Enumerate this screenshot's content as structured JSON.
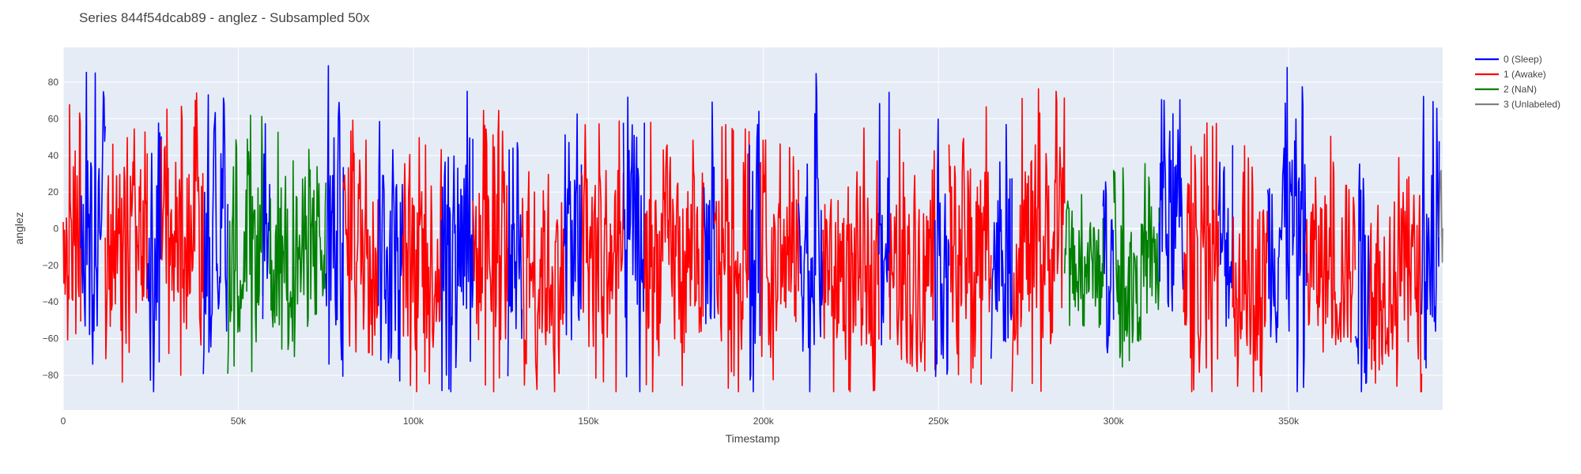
{
  "chart_data": {
    "type": "line",
    "title": "Series 844f54dcab89 - anglez - Subsampled 50x",
    "xlabel": "Timestamp",
    "ylabel": "anglez",
    "xlim": [
      0,
      394000
    ],
    "ylim": [
      -99,
      99
    ],
    "x_ticks": [
      {
        "value": 0,
        "label": "0"
      },
      {
        "value": 50000,
        "label": "50k"
      },
      {
        "value": 100000,
        "label": "100k"
      },
      {
        "value": 150000,
        "label": "150k"
      },
      {
        "value": 200000,
        "label": "200k"
      },
      {
        "value": 250000,
        "label": "250k"
      },
      {
        "value": 300000,
        "label": "300k"
      },
      {
        "value": 350000,
        "label": "350k"
      }
    ],
    "y_ticks": [
      {
        "value": 80,
        "label": "80"
      },
      {
        "value": 60,
        "label": "60"
      },
      {
        "value": 40,
        "label": "40"
      },
      {
        "value": 20,
        "label": "20"
      },
      {
        "value": 0,
        "label": "0"
      },
      {
        "value": -20,
        "label": "−20"
      },
      {
        "value": -40,
        "label": "−40"
      },
      {
        "value": -60,
        "label": "−60"
      },
      {
        "value": -80,
        "label": "−80"
      }
    ],
    "grid": true,
    "legend_position": "top-right, outside plot",
    "series": [
      {
        "name": "0 (Sleep)",
        "color": "#0000ff"
      },
      {
        "name": "1 (Awake)",
        "color": "#ff0000"
      },
      {
        "name": "2 (NaN)",
        "color": "#008000"
      },
      {
        "name": "3 (Unlabeled)",
        "color": "#808080"
      }
    ],
    "segments": [
      {
        "series": 1,
        "x_start": 0,
        "x_end": 5000,
        "center": 0,
        "amplitude": 60
      },
      {
        "series": 0,
        "x_start": 5000,
        "x_end": 12000,
        "center": 5,
        "amplitude": 70
      },
      {
        "series": 1,
        "x_start": 12000,
        "x_end": 24000,
        "center": -15,
        "amplitude": 60
      },
      {
        "series": 0,
        "x_start": 24000,
        "x_end": 28000,
        "center": -10,
        "amplitude": 65
      },
      {
        "series": 1,
        "x_start": 28000,
        "x_end": 40000,
        "center": -5,
        "amplitude": 65
      },
      {
        "series": 0,
        "x_start": 40000,
        "x_end": 47000,
        "center": 0,
        "amplitude": 70
      },
      {
        "series": 2,
        "x_start": 47000,
        "x_end": 57000,
        "center": -10,
        "amplitude": 60
      },
      {
        "series": 0,
        "x_start": 57000,
        "x_end": 59000,
        "center": 0,
        "amplitude": 55
      },
      {
        "series": 2,
        "x_start": 59000,
        "x_end": 75000,
        "center": -15,
        "amplitude": 55
      },
      {
        "series": 0,
        "x_start": 75000,
        "x_end": 80000,
        "center": 0,
        "amplitude": 75
      },
      {
        "series": 1,
        "x_start": 80000,
        "x_end": 90000,
        "center": -10,
        "amplitude": 65
      },
      {
        "series": 0,
        "x_start": 90000,
        "x_end": 97000,
        "center": -5,
        "amplitude": 65
      },
      {
        "series": 1,
        "x_start": 97000,
        "x_end": 108000,
        "center": -15,
        "amplitude": 65
      },
      {
        "series": 0,
        "x_start": 108000,
        "x_end": 117000,
        "center": 0,
        "amplitude": 75
      },
      {
        "series": 1,
        "x_start": 117000,
        "x_end": 127000,
        "center": -15,
        "amplitude": 65
      },
      {
        "series": 0,
        "x_start": 127000,
        "x_end": 131000,
        "center": 0,
        "amplitude": 75
      },
      {
        "series": 1,
        "x_start": 131000,
        "x_end": 143000,
        "center": -20,
        "amplitude": 65
      },
      {
        "series": 0,
        "x_start": 143000,
        "x_end": 148000,
        "center": -10,
        "amplitude": 70
      },
      {
        "series": 1,
        "x_start": 148000,
        "x_end": 160000,
        "center": -15,
        "amplitude": 65
      },
      {
        "series": 0,
        "x_start": 160000,
        "x_end": 166000,
        "center": -5,
        "amplitude": 70
      },
      {
        "series": 1,
        "x_start": 166000,
        "x_end": 183000,
        "center": -15,
        "amplitude": 65
      },
      {
        "series": 0,
        "x_start": 183000,
        "x_end": 186000,
        "center": -10,
        "amplitude": 65
      },
      {
        "series": 1,
        "x_start": 186000,
        "x_end": 196000,
        "center": -15,
        "amplitude": 60
      },
      {
        "series": 0,
        "x_start": 196000,
        "x_end": 199000,
        "center": -10,
        "amplitude": 70
      },
      {
        "series": 1,
        "x_start": 199000,
        "x_end": 210000,
        "center": -20,
        "amplitude": 60
      },
      {
        "series": 0,
        "x_start": 210000,
        "x_end": 217000,
        "center": -5,
        "amplitude": 75
      },
      {
        "series": 1,
        "x_start": 217000,
        "x_end": 233000,
        "center": -20,
        "amplitude": 60
      },
      {
        "series": 0,
        "x_start": 233000,
        "x_end": 236000,
        "center": -5,
        "amplitude": 65
      },
      {
        "series": 1,
        "x_start": 236000,
        "x_end": 249000,
        "center": -20,
        "amplitude": 60
      },
      {
        "series": 0,
        "x_start": 249000,
        "x_end": 253000,
        "center": -5,
        "amplitude": 75
      },
      {
        "series": 1,
        "x_start": 253000,
        "x_end": 265000,
        "center": -10,
        "amplitude": 65
      },
      {
        "series": 0,
        "x_start": 265000,
        "x_end": 271000,
        "center": -15,
        "amplitude": 60
      },
      {
        "series": 1,
        "x_start": 271000,
        "x_end": 286000,
        "center": -10,
        "amplitude": 70
      },
      {
        "series": 2,
        "x_start": 286000,
        "x_end": 297000,
        "center": -20,
        "amplitude": 35
      },
      {
        "series": 0,
        "x_start": 297000,
        "x_end": 300000,
        "center": -15,
        "amplitude": 55
      },
      {
        "series": 2,
        "x_start": 300000,
        "x_end": 313000,
        "center": -20,
        "amplitude": 45
      },
      {
        "series": 0,
        "x_start": 313000,
        "x_end": 320000,
        "center": 0,
        "amplitude": 70
      },
      {
        "series": 1,
        "x_start": 320000,
        "x_end": 330000,
        "center": -15,
        "amplitude": 60
      },
      {
        "series": 0,
        "x_start": 330000,
        "x_end": 334000,
        "center": -10,
        "amplitude": 65
      },
      {
        "series": 1,
        "x_start": 334000,
        "x_end": 344000,
        "center": -20,
        "amplitude": 60
      },
      {
        "series": 0,
        "x_start": 344000,
        "x_end": 355000,
        "center": 0,
        "amplitude": 75
      },
      {
        "series": 1,
        "x_start": 355000,
        "x_end": 369000,
        "center": -20,
        "amplitude": 60
      },
      {
        "series": 0,
        "x_start": 369000,
        "x_end": 373000,
        "center": -15,
        "amplitude": 70
      },
      {
        "series": 1,
        "x_start": 373000,
        "x_end": 388000,
        "center": -25,
        "amplitude": 55
      },
      {
        "series": 0,
        "x_start": 388000,
        "x_end": 393000,
        "center": -10,
        "amplitude": 70
      },
      {
        "series": 3,
        "x_start": 393000,
        "x_end": 394000,
        "center": 10,
        "amplitude": 35
      }
    ]
  }
}
